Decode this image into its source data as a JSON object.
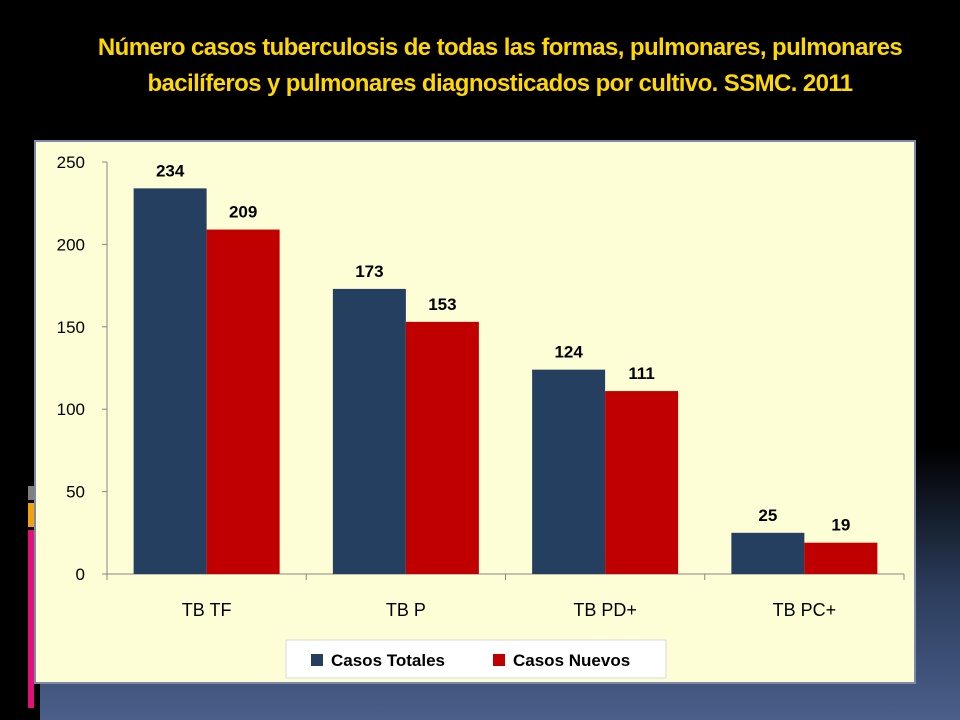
{
  "slide": {
    "title_line1": "Número  casos  tuberculosis de todas las formas, pulmonares, pulmonares",
    "title_line2": "bacilíferos y pulmonares diagnosticados por cultivo. SSMC. 2011"
  },
  "chart_data": {
    "type": "bar",
    "categories": [
      "TB TF",
      "TB P",
      "TB PD+",
      "TB PC+"
    ],
    "series": [
      {
        "name": "Casos Totales",
        "values": [
          234,
          173,
          124,
          25
        ],
        "color": "#243f60"
      },
      {
        "name": "Casos Nuevos",
        "values": [
          209,
          153,
          111,
          19
        ],
        "color": "#c00000"
      }
    ],
    "ylim": [
      0,
      250
    ],
    "yticks": [
      0,
      50,
      100,
      150,
      200,
      250
    ],
    "grid": false,
    "legend": "bottom",
    "data_labels": true,
    "background": "#fefed6"
  }
}
